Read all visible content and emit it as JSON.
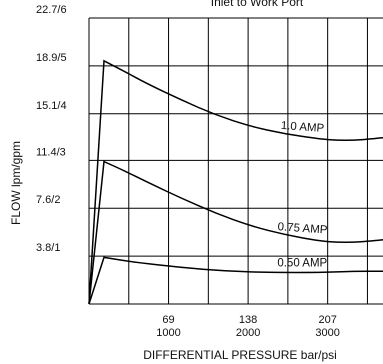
{
  "chart_data": {
    "type": "line",
    "title": "Inlet to Work Port",
    "xlabel": "DIFFERENTIAL PRESSURE  bar/psi",
    "ylabel": "FLOW lpm/gpm",
    "xlim": [
      0,
      255
    ],
    "ylim": [
      0,
      22.7
    ],
    "grid": true,
    "x_ticks": [
      {
        "value": 69,
        "bar": "69",
        "psi": "1000"
      },
      {
        "value": 138,
        "bar": "138",
        "psi": "2000"
      },
      {
        "value": 207,
        "bar": "207",
        "psi": "3000"
      }
    ],
    "y_ticks": [
      {
        "value": 3.8,
        "label": "3.8/1"
      },
      {
        "value": 7.6,
        "label": "7.6/2"
      },
      {
        "value": 11.4,
        "label": "11.4/3"
      },
      {
        "value": 15.1,
        "label": "15.1/4"
      },
      {
        "value": 18.9,
        "label": "18.9/5"
      },
      {
        "value": 22.7,
        "label": "22.7/6"
      }
    ],
    "series": [
      {
        "name": "1.0 AMP",
        "x": [
          0,
          13,
          30,
          50,
          80,
          110,
          140,
          170,
          200,
          215,
          230,
          245,
          255
        ],
        "y": [
          0,
          19.3,
          18.5,
          17.5,
          16.2,
          15.0,
          14.1,
          13.5,
          13.1,
          13.0,
          13.0,
          13.1,
          13.2
        ]
      },
      {
        "name": "0.75 AMP",
        "x": [
          0,
          13,
          30,
          50,
          80,
          110,
          140,
          170,
          200,
          215,
          230,
          245,
          255
        ],
        "y": [
          0,
          11.3,
          10.6,
          9.7,
          8.4,
          7.2,
          6.2,
          5.5,
          5.0,
          4.9,
          4.9,
          5.0,
          5.1
        ]
      },
      {
        "name": "0.50 AMP",
        "x": [
          0,
          13,
          40,
          80,
          120,
          160,
          200,
          230,
          255
        ],
        "y": [
          0,
          3.7,
          3.3,
          2.9,
          2.6,
          2.5,
          2.5,
          2.6,
          2.6
        ]
      }
    ]
  }
}
